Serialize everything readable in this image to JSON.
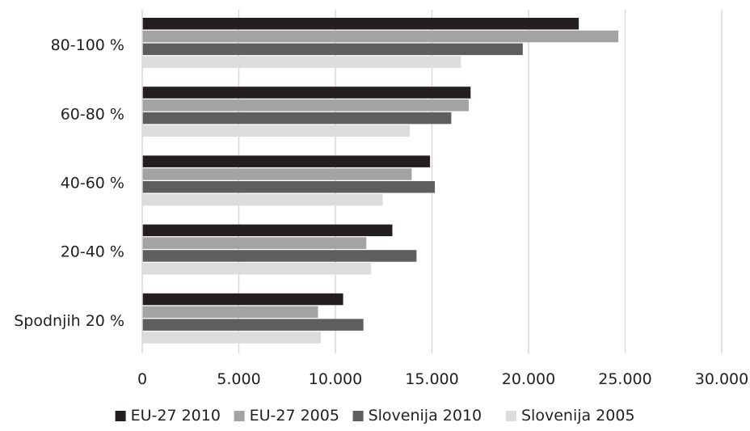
{
  "chart_data": {
    "type": "bar",
    "orientation": "horizontal",
    "categories": [
      "Spodnjih 20 %",
      "20-40 %",
      "40-60 %",
      "60-80 %",
      "80-100 %"
    ],
    "series": [
      {
        "name": "EU-27 2010",
        "color": "#231f20",
        "values": [
          10400,
          12950,
          14900,
          17000,
          22600
        ]
      },
      {
        "name": "EU-27 2005",
        "color": "#a3a3a3",
        "values": [
          9100,
          11600,
          13950,
          16900,
          24650
        ]
      },
      {
        "name": "Slovenija 2010",
        "color": "#5e5e5e",
        "values": [
          11450,
          14200,
          15150,
          16000,
          19700
        ]
      },
      {
        "name": "Slovenija 2005",
        "color": "#dcdcdc",
        "values": [
          9250,
          11850,
          12450,
          13850,
          16500
        ]
      }
    ],
    "xlim": [
      0,
      30000
    ],
    "xticks": [
      0,
      5000,
      10000,
      15000,
      20000,
      25000,
      30000
    ],
    "xtick_labels": [
      "0",
      "5.000",
      "10.000",
      "15.000",
      "20.000",
      "25.000",
      "30.000"
    ],
    "grid": "vertical",
    "gridline_color": "#d9d9d9",
    "legend_position": "bottom"
  }
}
